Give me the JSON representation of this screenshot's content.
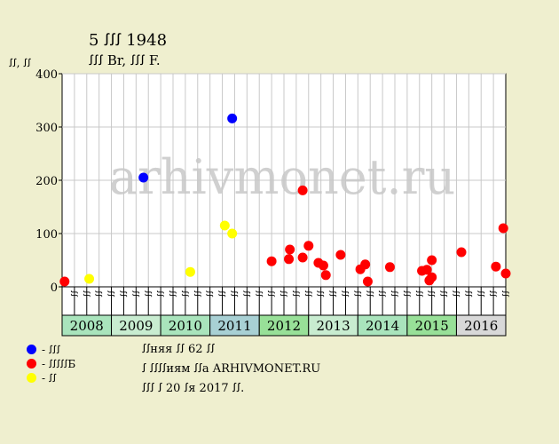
{
  "header": {
    "title": "5 ꭍꭍꭍ 1948",
    "subtitle": "ꭍꭍꭍ Br, ꭍꭍꭍ F.",
    "y_unit": "ꭍꭍ, ꭍꭍ"
  },
  "watermark": "arhivmonet.ru",
  "legend": [
    {
      "label": "- ꭍꭍꭍ",
      "color": "#0000ff"
    },
    {
      "label": "- ꭍꭍꭍꭍꭍБ",
      "color": "#ff0000"
    },
    {
      "label": "- ꭍꭍ",
      "color": "#ffff00"
    }
  ],
  "notes": {
    "line1": "ꭍꭍняя ꭍꭍ 62 ꭍꭍ",
    "line2": "ꭍ ꭍꭍꭍꭍиям ꭍꭍа ARHIVMONET.RU",
    "line3": "ꭍꭍꭍ ꭍ 20 ꭍя 2017 ꭍꭍ."
  },
  "colors": {
    "background": "#efefcf",
    "plot_background": "#ffffff",
    "year_fill_light": "#c8ecd0",
    "year_fill_mid": "#a9e4bc",
    "year_fill_dark": "#98e098",
    "year_2011": "#a8d0d4",
    "year_2016": "#d8d8d8"
  },
  "chart_data": {
    "type": "scatter",
    "ylim": [
      0,
      400
    ],
    "yticks": [
      0,
      100,
      200,
      300,
      400
    ],
    "grid": true,
    "quarter_labels": [
      "ꭍꭍ",
      "ꭍꭍ",
      "ꭍꭍ",
      "ꭍꭍ"
    ],
    "years": [
      {
        "label": "2008",
        "fill": "#a9e4bc"
      },
      {
        "label": "2009",
        "fill": "#c8ecd0"
      },
      {
        "label": "2010",
        "fill": "#a9e4bc"
      },
      {
        "label": "2011",
        "fill": "#a8d0d4"
      },
      {
        "label": "2012",
        "fill": "#98e098"
      },
      {
        "label": "2013",
        "fill": "#c8ecd0"
      },
      {
        "label": "2014",
        "fill": "#a9e4bc"
      },
      {
        "label": "2015",
        "fill": "#98e098"
      },
      {
        "label": "2016",
        "fill": "#d8d8d8"
      }
    ],
    "series": [
      {
        "name": "blue",
        "color": "#0000ff",
        "points": [
          {
            "x": 2009.65,
            "y": 205
          },
          {
            "x": 2011.45,
            "y": 316
          }
        ]
      },
      {
        "name": "red",
        "color": "#ff0000",
        "points": [
          {
            "x": 2008.05,
            "y": 10
          },
          {
            "x": 2012.25,
            "y": 48
          },
          {
            "x": 2012.6,
            "y": 52
          },
          {
            "x": 2012.62,
            "y": 70
          },
          {
            "x": 2012.88,
            "y": 181
          },
          {
            "x": 2012.88,
            "y": 55
          },
          {
            "x": 2013.0,
            "y": 77
          },
          {
            "x": 2013.2,
            "y": 45
          },
          {
            "x": 2013.3,
            "y": 40
          },
          {
            "x": 2013.35,
            "y": 22
          },
          {
            "x": 2013.65,
            "y": 60
          },
          {
            "x": 2014.05,
            "y": 33
          },
          {
            "x": 2014.15,
            "y": 42
          },
          {
            "x": 2014.2,
            "y": 10
          },
          {
            "x": 2014.65,
            "y": 37
          },
          {
            "x": 2015.3,
            "y": 30
          },
          {
            "x": 2015.4,
            "y": 32
          },
          {
            "x": 2015.45,
            "y": 12
          },
          {
            "x": 2015.5,
            "y": 18
          },
          {
            "x": 2015.5,
            "y": 50
          },
          {
            "x": 2016.1,
            "y": 65
          },
          {
            "x": 2016.8,
            "y": 38
          },
          {
            "x": 2016.95,
            "y": 110
          },
          {
            "x": 2017.0,
            "y": 25
          }
        ]
      },
      {
        "name": "yellow",
        "color": "#ffff00",
        "points": [
          {
            "x": 2008.55,
            "y": 15
          },
          {
            "x": 2010.6,
            "y": 28
          },
          {
            "x": 2011.3,
            "y": 115
          },
          {
            "x": 2011.45,
            "y": 100
          }
        ]
      }
    ]
  }
}
